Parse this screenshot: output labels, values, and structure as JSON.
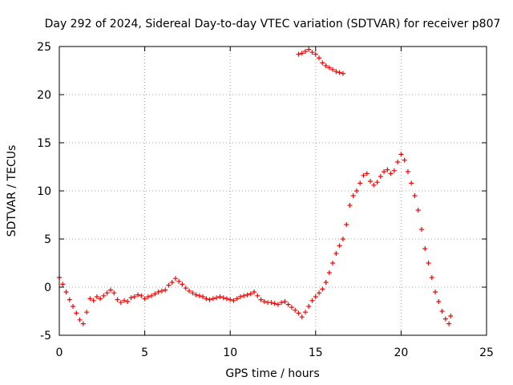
{
  "chart_data": {
    "type": "scatter",
    "title": "Day 292 of 2024, Sidereal Day-to-day VTEC variation (SDTVAR) for receiver p807",
    "xlabel": "GPS time / hours",
    "ylabel": "SDTVAR / TECUs",
    "xlim": [
      0,
      25
    ],
    "ylim": [
      -5,
      25
    ],
    "xticks": [
      "0",
      "5",
      "10",
      "15",
      "20",
      "25"
    ],
    "yticks": [
      "-5",
      "0",
      "5",
      "10",
      "15",
      "20",
      "25"
    ],
    "grid": true,
    "marker": "plus",
    "series": [
      {
        "name": "p807",
        "color": "#ff0000",
        "x": [
          0.0,
          0.2,
          0.4,
          0.6,
          0.8,
          1.0,
          1.2,
          1.4,
          1.6,
          1.8,
          2.0,
          2.2,
          2.4,
          2.6,
          2.8,
          3.0,
          3.2,
          3.4,
          3.6,
          3.8,
          4.0,
          4.2,
          4.4,
          4.6,
          4.8,
          5.0,
          5.2,
          5.4,
          5.6,
          5.8,
          6.0,
          6.2,
          6.4,
          6.6,
          6.8,
          7.0,
          7.2,
          7.4,
          7.6,
          7.8,
          8.0,
          8.2,
          8.4,
          8.6,
          8.8,
          9.0,
          9.2,
          9.4,
          9.6,
          9.8,
          10.0,
          10.2,
          10.4,
          10.6,
          10.8,
          11.0,
          11.2,
          11.4,
          11.6,
          11.8,
          12.0,
          12.2,
          12.4,
          12.6,
          12.8,
          13.0,
          13.2,
          13.4,
          13.6,
          13.8,
          14.0,
          14.2,
          14.4,
          14.6,
          14.8,
          15.0,
          15.2,
          15.4,
          15.6,
          15.8,
          16.0,
          16.2,
          16.4,
          16.6,
          16.8,
          17.0,
          17.2,
          17.4,
          17.6,
          17.8,
          18.0,
          18.2,
          18.4,
          18.6,
          18.8,
          19.0,
          19.2,
          19.4,
          19.6,
          19.8,
          20.0,
          20.2,
          20.4,
          20.6,
          20.8,
          21.0,
          21.2,
          21.4,
          21.6,
          21.8,
          22.0,
          22.2,
          22.4,
          22.6,
          22.8,
          22.9,
          14.0,
          14.2,
          14.4,
          14.6,
          14.8,
          15.0,
          15.2,
          15.4,
          15.6,
          15.8,
          16.0,
          16.2,
          16.4,
          16.6
        ],
        "y": [
          1.0,
          0.3,
          -0.5,
          -1.3,
          -2.0,
          -2.7,
          -3.4,
          -3.8,
          -2.6,
          -1.2,
          -1.4,
          -1.0,
          -1.2,
          -0.9,
          -0.6,
          -0.3,
          -0.6,
          -1.3,
          -1.6,
          -1.4,
          -1.5,
          -1.1,
          -1.0,
          -0.8,
          -0.9,
          -1.2,
          -1.0,
          -0.9,
          -0.7,
          -0.5,
          -0.4,
          -0.3,
          0.2,
          0.5,
          0.9,
          0.6,
          0.3,
          -0.1,
          -0.4,
          -0.6,
          -0.8,
          -0.9,
          -1.0,
          -1.2,
          -1.3,
          -1.2,
          -1.1,
          -1.0,
          -1.1,
          -1.2,
          -1.3,
          -1.4,
          -1.2,
          -1.0,
          -0.9,
          -0.8,
          -0.7,
          -0.5,
          -0.9,
          -1.3,
          -1.5,
          -1.6,
          -1.6,
          -1.7,
          -1.8,
          -1.6,
          -1.5,
          -1.8,
          -2.1,
          -2.4,
          -2.7,
          -3.1,
          -2.6,
          -2.0,
          -1.4,
          -1.0,
          -0.6,
          -0.2,
          0.5,
          1.5,
          2.5,
          3.5,
          4.3,
          5.0,
          6.5,
          8.5,
          9.5,
          10.0,
          10.8,
          11.6,
          11.8,
          11.0,
          10.6,
          10.9,
          11.5,
          12.0,
          12.2,
          11.8,
          12.1,
          13.0,
          13.8,
          13.2,
          12.0,
          10.8,
          9.5,
          8.0,
          6.0,
          4.0,
          2.5,
          1.0,
          -0.5,
          -1.5,
          -2.5,
          -3.3,
          -3.8,
          -3.0,
          24.2,
          24.3,
          24.5,
          24.7,
          24.4,
          24.2,
          23.8,
          23.3,
          23.0,
          22.8,
          22.6,
          22.4,
          22.3,
          22.2
        ]
      }
    ]
  }
}
